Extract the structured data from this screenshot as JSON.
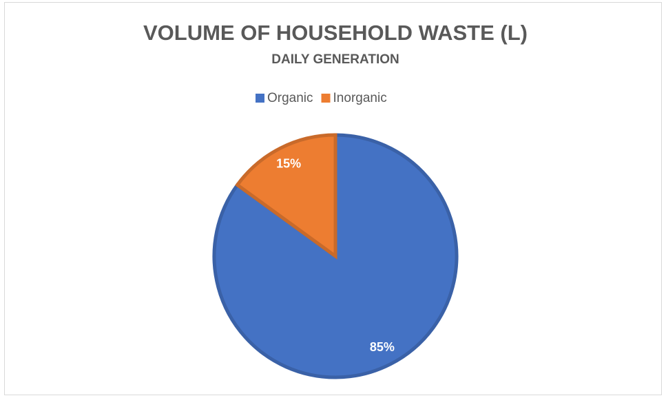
{
  "chart_data": {
    "type": "pie",
    "title": "VOLUME OF HOUSEHOLD WASTE (L)",
    "subtitle": "DAILY GENERATION",
    "categories": [
      "Organic",
      "Inorganic"
    ],
    "values": [
      85,
      15
    ],
    "value_labels": [
      "85%",
      "15%"
    ],
    "colors": [
      "#4472c4",
      "#ed7d31"
    ],
    "legend": "top"
  }
}
